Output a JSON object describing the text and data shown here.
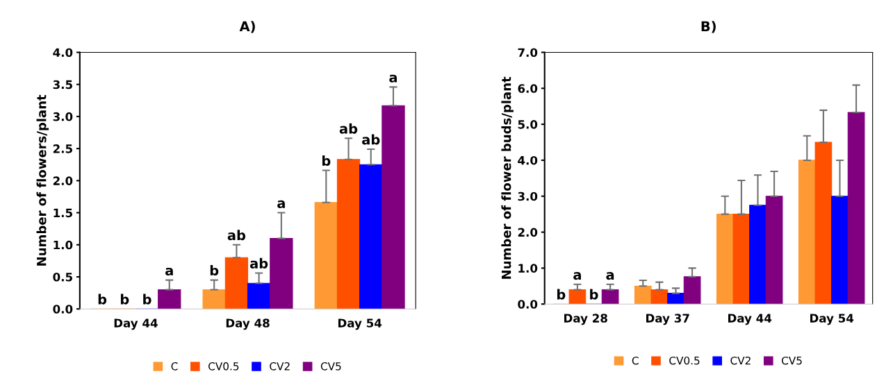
{
  "chart_data": [
    {
      "type": "bar",
      "title": "A)",
      "ylabel": "Number of flowers/plant",
      "categories": [
        "Day 44",
        "Day 48",
        "Day 54"
      ],
      "ylim": [
        0,
        4
      ],
      "yticks": [
        {
          "value": 0,
          "label": "0.0"
        },
        {
          "value": 0.5,
          "label": "0.5"
        },
        {
          "value": 1,
          "label": "1.0"
        },
        {
          "value": 1.5,
          "label": "1.5"
        },
        {
          "value": 2,
          "label": "2.0"
        },
        {
          "value": 2.5,
          "label": "2.5"
        },
        {
          "value": 3,
          "label": "3.0"
        },
        {
          "value": 3.5,
          "label": "3.5"
        },
        {
          "value": 4,
          "label": "4.0"
        }
      ],
      "grid": false,
      "legend": "bottom",
      "series": [
        {
          "name": "C",
          "color": "#ff9933",
          "values": [
            0,
            0.3,
            1.66
          ],
          "errors": [
            null,
            [
              0.3,
              0.45
            ],
            [
              1.66,
              2.16
            ]
          ],
          "value_labels": [
            "b",
            "b",
            "b"
          ]
        },
        {
          "name": "CV0.5",
          "color": "#ff5000",
          "values": [
            0,
            0.8,
            2.33
          ],
          "errors": [
            null,
            [
              0.8,
              1.0
            ],
            [
              2.33,
              2.66
            ]
          ],
          "value_labels": [
            "b",
            "ab",
            "ab"
          ]
        },
        {
          "name": "CV2",
          "color": "#0000ff",
          "values": [
            0,
            0.4,
            2.25
          ],
          "errors": [
            null,
            [
              0.4,
              0.56
            ],
            [
              2.25,
              2.49
            ]
          ],
          "value_labels": [
            "b",
            "ab",
            "ab"
          ]
        },
        {
          "name": "CV5",
          "color": "#800080",
          "values": [
            0.3,
            1.1,
            3.17
          ],
          "errors": [
            [
              0.3,
              0.45
            ],
            [
              1.1,
              1.5
            ],
            [
              3.17,
              3.46
            ]
          ],
          "value_labels": [
            "a",
            "a",
            "a"
          ]
        }
      ]
    },
    {
      "type": "bar",
      "title": "B)",
      "ylabel": "Number of flower buds/plant",
      "categories": [
        "Day 28",
        "Day 37",
        "Day 44",
        "Day 54"
      ],
      "ylim": [
        0,
        7
      ],
      "yticks": [
        {
          "value": 0,
          "label": "0.0"
        },
        {
          "value": 1,
          "label": "1.0"
        },
        {
          "value": 2,
          "label": "2.0"
        },
        {
          "value": 3,
          "label": "3.0"
        },
        {
          "value": 4,
          "label": "4.0"
        },
        {
          "value": 5,
          "label": "5.0"
        },
        {
          "value": 6,
          "label": "6.0"
        },
        {
          "value": 7,
          "label": "7.0"
        }
      ],
      "grid": false,
      "legend": "bottom",
      "series": [
        {
          "name": "C",
          "color": "#ff9933",
          "values": [
            0,
            0.5,
            2.5,
            4.0
          ],
          "errors": [
            null,
            [
              0.5,
              0.66
            ],
            [
              2.5,
              3.0
            ],
            [
              4.0,
              4.68
            ]
          ],
          "value_labels": [
            "b",
            null,
            null,
            null
          ]
        },
        {
          "name": "CV0.5",
          "color": "#ff5000",
          "values": [
            0.4,
            0.4,
            2.5,
            4.5
          ],
          "errors": [
            [
              0.4,
              0.55
            ],
            [
              0.4,
              0.61
            ],
            [
              2.5,
              3.44
            ],
            [
              4.5,
              5.39
            ]
          ],
          "value_labels": [
            "a",
            null,
            null,
            null
          ]
        },
        {
          "name": "CV2",
          "color": "#0000ff",
          "values": [
            0,
            0.3,
            2.75,
            3.0
          ],
          "errors": [
            null,
            [
              0.3,
              0.44
            ],
            [
              2.75,
              3.59
            ],
            [
              3.0,
              4.0
            ]
          ],
          "value_labels": [
            "b",
            null,
            null,
            null
          ]
        },
        {
          "name": "CV5",
          "color": "#800080",
          "values": [
            0.4,
            0.76,
            3.0,
            5.33
          ],
          "errors": [
            [
              0.4,
              0.55
            ],
            [
              0.76,
              1.0
            ],
            [
              3.0,
              3.69
            ],
            [
              5.33,
              6.09
            ]
          ],
          "value_labels": [
            "a",
            null,
            null,
            null
          ]
        }
      ]
    }
  ]
}
